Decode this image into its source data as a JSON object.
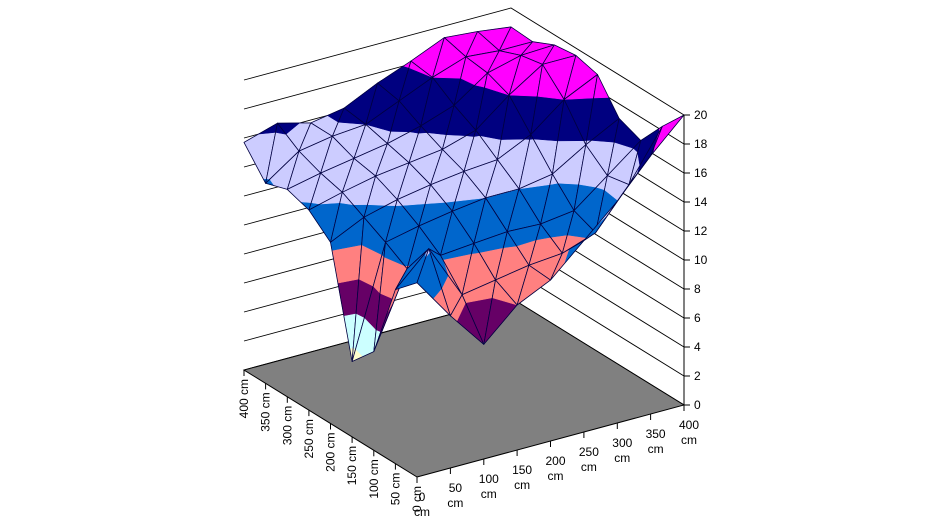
{
  "chart_data": {
    "type": "surface",
    "title": "",
    "x_axis": {
      "tick_values": [
        "0",
        "50",
        "100",
        "150",
        "200",
        "250",
        "300",
        "350",
        "400"
      ],
      "unit": "cm",
      "min_label": "0 cm",
      "max_label": "400 cm"
    },
    "y_axis": {
      "tick_labels": [
        "0 cm",
        "50 cm",
        "100 cm",
        "150 cm",
        "200 cm",
        "250 cm",
        "300 cm",
        "350 cm",
        "400 cm"
      ]
    },
    "z_axis": {
      "min": 0,
      "max": 20,
      "step": 2,
      "tick_labels": [
        "0",
        "2",
        "4",
        "6",
        "8",
        "10",
        "12",
        "14",
        "16",
        "18",
        "20"
      ]
    },
    "band_size": 2,
    "band_colors_low_to_high": [
      "#9999FF",
      "#993366",
      "#FFFFCC",
      "#CCFFFF",
      "#660066",
      "#FF8080",
      "#0066CC",
      "#CCCCFF",
      "#000080",
      "#FF00FF"
    ],
    "colors": {
      "floor": "#808080",
      "wall_line": "#000000",
      "mesh_line": "#000040",
      "axis_line": "#000000",
      "background": "#FFFFFF",
      "text": "#000000"
    },
    "grid": {
      "rows": 9,
      "cols": 9,
      "row_axis": "y (cm, front to back-left)",
      "col_axis": "x (cm, front to back-right)",
      "values_rows_front_to_back": [
        [
          13.4,
          10.5,
          7.9,
          10.0,
          11.1,
          13.2,
          15.3,
          17.8,
          20.0
        ],
        [
          12.0,
          14.2,
          10.4,
          10.8,
          11.2,
          11.4,
          12.2,
          14.9,
          18.3
        ],
        [
          6.8,
          11.9,
          12.2,
          12.4,
          12.6,
          12.5,
          12.8,
          14.6,
          16.4
        ],
        [
          5.2,
          12.8,
          13.3,
          13.7,
          14.0,
          14.0,
          14.4,
          15.8,
          17.0
        ],
        [
          12.5,
          13.6,
          14.2,
          14.6,
          14.9,
          15.1,
          16.2,
          18.0,
          19.1
        ],
        [
          13.8,
          14.4,
          14.9,
          15.2,
          15.5,
          16.2,
          18.0,
          19.5,
          19.5
        ],
        [
          14.3,
          14.8,
          15.2,
          15.6,
          16.2,
          17.0,
          18.6,
          19.2,
          19.3
        ],
        [
          13.8,
          15.4,
          15.8,
          16.0,
          17.0,
          18.0,
          18.8,
          18.6,
          18.6
        ],
        [
          15.7,
          16.4,
          15.8,
          16.2,
          17.3,
          18.2,
          19.2,
          19.0,
          18.7
        ]
      ]
    },
    "layout_hints": {
      "legend": "none",
      "walls": "gridlines every 2 units on both back walls",
      "projection": "axonometric, floor parallelogram"
    }
  }
}
